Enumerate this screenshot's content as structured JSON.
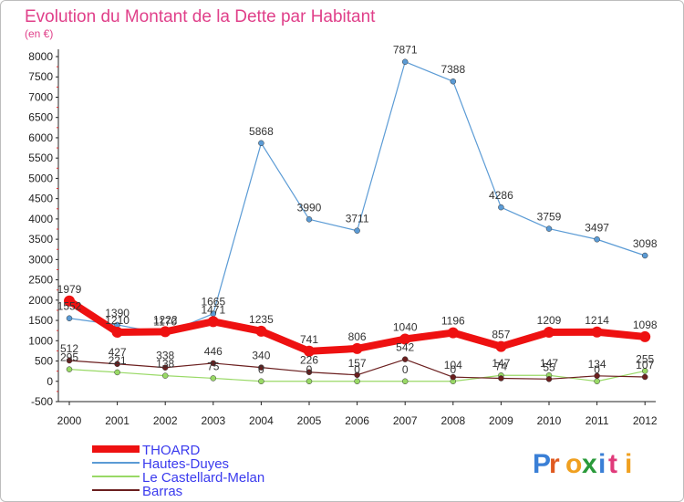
{
  "chart_data": {
    "type": "line",
    "title": "Evolution du Montant de la Dette par Habitant",
    "subtitle": "(en €)",
    "x": [
      "2000",
      "2001",
      "2002",
      "2003",
      "2004",
      "2005",
      "2006",
      "2007",
      "2008",
      "2009",
      "2010",
      "2011",
      "2012"
    ],
    "ylim": [
      -500,
      8000
    ],
    "yticks": [
      -500,
      0,
      500,
      1000,
      1500,
      2000,
      2500,
      3000,
      3500,
      4000,
      4500,
      5000,
      5500,
      6000,
      6500,
      7000,
      7500,
      8000
    ],
    "grid": false,
    "legend_position": "bottom-left",
    "series": [
      {
        "name": "THOARD",
        "color": "#ee1111",
        "values": [
          1979,
          1210,
          1222,
          1471,
          1235,
          741,
          806,
          1040,
          1196,
          857,
          1209,
          1214,
          1098
        ]
      },
      {
        "name": "Hautes-Duyes",
        "color": "#5b9bd5",
        "values": [
          1552,
          1390,
          1170,
          1665,
          5868,
          3990,
          3711,
          7871,
          7388,
          4286,
          3759,
          3497,
          3098
        ]
      },
      {
        "name": "Le Castellard-Melan",
        "color": "#99d966",
        "values": [
          295,
          221,
          138,
          75,
          0,
          0,
          0,
          0,
          0,
          147,
          147,
          0,
          255
        ]
      },
      {
        "name": "Barras",
        "color": "#6b1f1f",
        "values": [
          512,
          427,
          338,
          446,
          340,
          226,
          157,
          542,
          104,
          74,
          55,
          134,
          107
        ]
      }
    ]
  },
  "brand": {
    "text": "Proxiti"
  }
}
